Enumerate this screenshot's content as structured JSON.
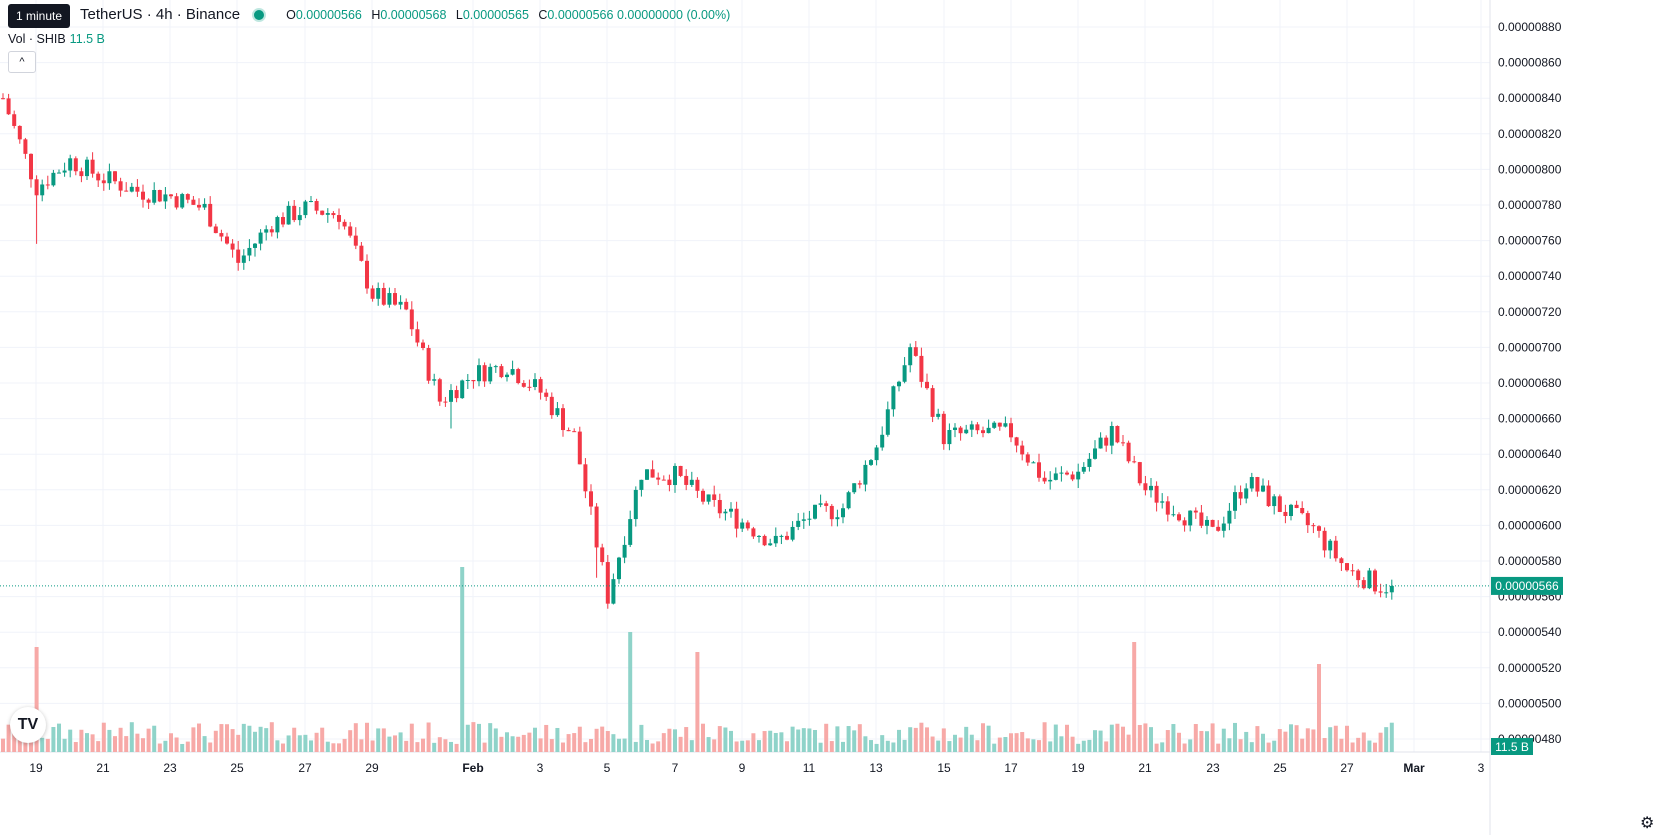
{
  "header": {
    "tooltip": "1 minute",
    "symbol": "TetherUS · 4h · Binance",
    "open_label": "O",
    "open": "0.00000566",
    "high_label": "H",
    "high": "0.00000568",
    "low_label": "L",
    "low": "0.00000565",
    "close_label": "C",
    "close": "0.00000566",
    "change": "0.00000000 (0.00%)",
    "vol_label": "Vol · SHIB",
    "vol_value": "11.5 B",
    "collapse_icon": "chevron-up-icon",
    "logo_text": "TV",
    "settings_icon": "gear-icon"
  },
  "colors": {
    "up": "#089981",
    "down": "#f23645",
    "up_vol": "#8fd3c9",
    "down_vol": "#f7a9a7",
    "grid": "#f0f3fa"
  },
  "chart_data": {
    "type": "candlestick",
    "title": "",
    "ylim": [
      4.7e-06,
      8.9e-06
    ],
    "y_ticks": [
      "0.00000880",
      "0.00000860",
      "0.00000840",
      "0.00000820",
      "0.00000800",
      "0.00000780",
      "0.00000760",
      "0.00000740",
      "0.00000720",
      "0.00000700",
      "0.00000680",
      "0.00000660",
      "0.00000640",
      "0.00000620",
      "0.00000600",
      "0.00000580",
      "0.00000560",
      "0.00000540",
      "0.00000520",
      "0.00000500",
      "0.00000480"
    ],
    "x_ticks": [
      "19",
      "21",
      "23",
      "25",
      "27",
      "29",
      "Feb",
      "3",
      "5",
      "7",
      "9",
      "11",
      "13",
      "15",
      "17",
      "19",
      "21",
      "23",
      "25",
      "27",
      "Mar",
      "3"
    ],
    "last_price": "0.00000566",
    "last_volume": "11.5 B",
    "close_anchors": [
      {
        "date": "19",
        "close": 8.4e-06
      },
      {
        "date": "20",
        "close": 7.9e-06
      },
      {
        "date": "21",
        "close": 8.05e-06
      },
      {
        "date": "22",
        "close": 7.95e-06
      },
      {
        "date": "23",
        "close": 7.88e-06
      },
      {
        "date": "24",
        "close": 7.85e-06
      },
      {
        "date": "25",
        "close": 7.78e-06
      },
      {
        "date": "26",
        "close": 7.48e-06
      },
      {
        "date": "27",
        "close": 7.7e-06
      },
      {
        "date": "28",
        "close": 7.78e-06
      },
      {
        "date": "29",
        "close": 7.75e-06
      },
      {
        "date": "30",
        "close": 7.3e-06
      },
      {
        "date": "31",
        "close": 7.2e-06
      },
      {
        "date": "Feb",
        "close": 6.7e-06
      },
      {
        "date": "2",
        "close": 6.85e-06
      },
      {
        "date": "3",
        "close": 6.9e-06
      },
      {
        "date": "4",
        "close": 6.75e-06
      },
      {
        "date": "5",
        "close": 6.5e-06
      },
      {
        "date": "6",
        "close": 5.6e-06
      },
      {
        "date": "7",
        "close": 6.3e-06
      },
      {
        "date": "8",
        "close": 6.28e-06
      },
      {
        "date": "9",
        "close": 6.12e-06
      },
      {
        "date": "10",
        "close": 6.02e-06
      },
      {
        "date": "11",
        "close": 5.9e-06
      },
      {
        "date": "12",
        "close": 6.05e-06
      },
      {
        "date": "13",
        "close": 6.1e-06
      },
      {
        "date": "14",
        "close": 6.45e-06
      },
      {
        "date": "15",
        "close": 7e-06
      },
      {
        "date": "16",
        "close": 6.5e-06
      },
      {
        "date": "17",
        "close": 6.52e-06
      },
      {
        "date": "18",
        "close": 6.52e-06
      },
      {
        "date": "19",
        "close": 6.25e-06
      },
      {
        "date": "20",
        "close": 6.3e-06
      },
      {
        "date": "21",
        "close": 6.53e-06
      },
      {
        "date": "22",
        "close": 6.2e-06
      },
      {
        "date": "23",
        "close": 6.08e-06
      },
      {
        "date": "24",
        "close": 5.95e-06
      },
      {
        "date": "25",
        "close": 6.25e-06
      },
      {
        "date": "26",
        "close": 6.1e-06
      },
      {
        "date": "27",
        "close": 5.98e-06
      },
      {
        "date": "28",
        "close": 5.75e-06
      },
      {
        "date": "Mar",
        "close": 5.66e-06
      }
    ]
  }
}
